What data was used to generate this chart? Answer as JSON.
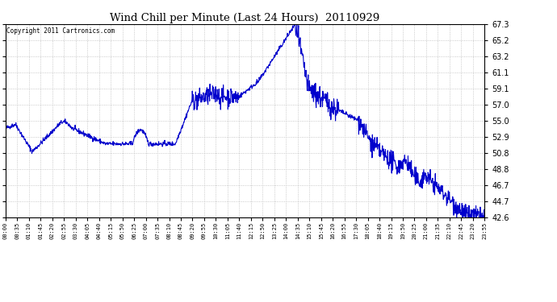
{
  "title": "Wind Chill per Minute (Last 24 Hours)  20110929",
  "copyright": "Copyright 2011 Cartronics.com",
  "line_color": "#0000cc",
  "background_color": "#ffffff",
  "plot_background": "#ffffff",
  "grid_color": "#bbbbbb",
  "ylim": [
    42.6,
    67.3
  ],
  "yticks": [
    42.6,
    44.7,
    46.7,
    48.8,
    50.8,
    52.9,
    55.0,
    57.0,
    59.1,
    61.1,
    63.2,
    65.2,
    67.3
  ],
  "xtick_labels": [
    "00:00",
    "00:35",
    "01:10",
    "01:45",
    "02:20",
    "02:55",
    "03:30",
    "04:05",
    "04:40",
    "05:15",
    "05:50",
    "06:25",
    "07:00",
    "07:35",
    "08:10",
    "08:45",
    "09:20",
    "09:55",
    "10:30",
    "11:05",
    "11:40",
    "12:15",
    "12:50",
    "13:25",
    "14:00",
    "14:35",
    "15:10",
    "15:45",
    "16:20",
    "16:55",
    "17:30",
    "18:05",
    "18:40",
    "19:15",
    "19:50",
    "20:25",
    "21:00",
    "21:35",
    "22:10",
    "22:45",
    "23:20",
    "23:55"
  ],
  "num_points": 1440
}
